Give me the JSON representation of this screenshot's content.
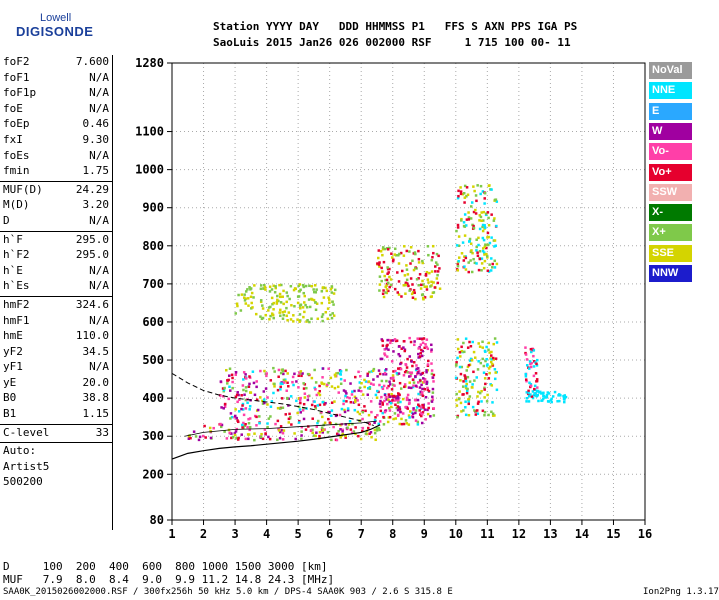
{
  "logo": {
    "top": "Lowell",
    "bottom": "DIGISONDE"
  },
  "header": {
    "line1": "Station YYYY DAY   DDD HHMMSS P1   FFS S AXN PPS IGA PS",
    "line2": "SaoLuis 2015 Jan26 026 002000 RSF     1 715 100 00- 11"
  },
  "scaled_params": [
    {
      "label": "foF2",
      "value": "7.600"
    },
    {
      "label": "foF1",
      "value": "N/A"
    },
    {
      "label": "foF1p",
      "value": "N/A"
    },
    {
      "label": "foE",
      "value": "N/A"
    },
    {
      "label": "foEp",
      "value": "0.46"
    },
    {
      "label": "fxI",
      "value": "9.30"
    },
    {
      "label": "foEs",
      "value": "N/A"
    },
    {
      "label": "fmin",
      "value": "1.75"
    },
    {
      "label": "MUF(D)",
      "value": "24.29"
    },
    {
      "label": "M(D)",
      "value": "3.20"
    },
    {
      "label": "D",
      "value": "N/A"
    },
    {
      "label": "h`F",
      "value": "295.0"
    },
    {
      "label": "h`F2",
      "value": "295.0"
    },
    {
      "label": "h`E",
      "value": "N/A"
    },
    {
      "label": "h`Es",
      "value": "N/A"
    },
    {
      "label": "hmF2",
      "value": "324.6"
    },
    {
      "label": "hmF1",
      "value": "N/A"
    },
    {
      "label": "hmE",
      "value": "110.0"
    },
    {
      "label": "yF2",
      "value": "34.5"
    },
    {
      "label": "yF1",
      "value": "N/A"
    },
    {
      "label": "yE",
      "value": "20.0"
    },
    {
      "label": "B0",
      "value": "38.8"
    },
    {
      "label": "B1",
      "value": "1.15"
    },
    {
      "label": "C-level",
      "value": "33"
    }
  ],
  "autoscale": {
    "line1": "Auto:",
    "line2": "Artist5",
    "line3": "500200"
  },
  "legend": [
    {
      "label": "NoVal",
      "color": "#9a9a9a"
    },
    {
      "label": "NNE",
      "color": "#00e5ff"
    },
    {
      "label": "E",
      "color": "#2aa8ff"
    },
    {
      "label": "W",
      "color": "#a000a0"
    },
    {
      "label": "Vo-",
      "color": "#ff3fa8"
    },
    {
      "label": "Vo+",
      "color": "#e6002e"
    },
    {
      "label": "SSW",
      "color": "#f2b0b0"
    },
    {
      "label": "X-",
      "color": "#007a00"
    },
    {
      "label": "X+",
      "color": "#7fc94a"
    },
    {
      "label": "SSE",
      "color": "#d4d400"
    },
    {
      "label": "NNW",
      "color": "#1c1ccc"
    }
  ],
  "muf_table": {
    "d_row": "D     100  200  400  600  800 1000 1500 3000 [km]",
    "muf_row": "MUF   7.9  8.0  8.4  9.0  9.9 11.2 14.8 24.3 [MHz]"
  },
  "footer": {
    "left": "SAA0K_2015026002000.RSF / 300fx256h 50 kHz 5.0 km / DPS-4 SAA0K 903 / 2.6 S 315.8 E",
    "right": "Ion2Png 1.3.17"
  },
  "chart_data": {
    "type": "scatter",
    "x_ticks": [
      1,
      2,
      3,
      4,
      5,
      6,
      7,
      8,
      9,
      10,
      11,
      12,
      13,
      14,
      15,
      16
    ],
    "y_ticks": [
      80,
      200,
      300,
      400,
      500,
      600,
      700,
      800,
      900,
      1000,
      1100,
      1280
    ],
    "xlim": [
      1,
      16
    ],
    "ylim": [
      80,
      1280
    ],
    "grid": true,
    "clusters": [
      {
        "x": [
          1.5,
          7.6
        ],
        "y": [
          290,
          330
        ],
        "colors": [
          "Vo+",
          "Vo-",
          "SSE",
          "X+",
          "W"
        ]
      },
      {
        "x": [
          2.5,
          9.3
        ],
        "y": [
          330,
          480
        ],
        "colors": [
          "Vo+",
          "Vo-",
          "W",
          "SSE",
          "X+",
          "NNE"
        ]
      },
      {
        "x": [
          7.6,
          9.3
        ],
        "y": [
          350,
          560
        ],
        "colors": [
          "Vo+",
          "Vo-",
          "W"
        ]
      },
      {
        "x": [
          3,
          6.2
        ],
        "y": [
          600,
          700
        ],
        "colors": [
          "SSE",
          "X+"
        ]
      },
      {
        "x": [
          7.5,
          9.5
        ],
        "y": [
          660,
          800
        ],
        "colors": [
          "SSE",
          "X+",
          "Vo+"
        ]
      },
      {
        "x": [
          10,
          11.3
        ],
        "y": [
          730,
          960
        ],
        "colors": [
          "SSE",
          "Vo+",
          "NNE",
          "X+"
        ]
      },
      {
        "x": [
          10,
          11.3
        ],
        "y": [
          350,
          560
        ],
        "colors": [
          "SSE",
          "X+",
          "Vo+",
          "NNE"
        ]
      },
      {
        "x": [
          12.2,
          13.5
        ],
        "y": [
          390,
          420
        ],
        "colors": [
          "NNE"
        ]
      },
      {
        "x": [
          12.2,
          12.6
        ],
        "y": [
          400,
          540
        ],
        "colors": [
          "Vo+",
          "Vo-",
          "NNE"
        ]
      }
    ],
    "profile_curve": {
      "f": [
        1.0,
        1.5,
        2.0,
        2.5,
        3.0,
        3.5,
        4.0,
        4.5,
        5.0,
        5.5,
        6.0,
        6.5,
        7.0,
        7.3,
        7.6
      ],
      "h": [
        240,
        255,
        262,
        268,
        272,
        275,
        279,
        283,
        287,
        292,
        298,
        304,
        310,
        318,
        330
      ]
    },
    "dashed_curve": {
      "f": [
        1.0,
        1.5,
        2.0,
        2.5,
        3.0,
        3.5,
        4.0,
        4.5,
        5.0,
        5.5,
        6.0,
        6.5,
        7.0,
        7.4
      ],
      "h": [
        465,
        440,
        420,
        408,
        400,
        395,
        390,
        385,
        378,
        370,
        360,
        350,
        340,
        328
      ]
    },
    "fine_trace": {
      "f": [
        1.4,
        2.0,
        3.0,
        4.0,
        5.0,
        6.0,
        7.0,
        7.5
      ],
      "h": [
        300,
        310,
        318,
        320,
        325,
        330,
        335,
        340
      ]
    }
  }
}
